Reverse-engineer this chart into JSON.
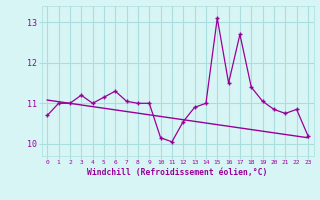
{
  "x": [
    0,
    1,
    2,
    3,
    4,
    5,
    6,
    7,
    8,
    9,
    10,
    11,
    12,
    13,
    14,
    15,
    16,
    17,
    18,
    19,
    20,
    21,
    22,
    23
  ],
  "y": [
    10.7,
    11.0,
    11.0,
    11.2,
    11.0,
    11.15,
    11.3,
    11.05,
    11.0,
    11.0,
    10.15,
    10.05,
    10.55,
    10.9,
    11.0,
    13.1,
    11.5,
    12.7,
    11.4,
    11.05,
    10.85,
    10.75,
    10.85,
    10.2
  ],
  "trend_x": [
    0,
    23
  ],
  "trend_y": [
    11.08,
    10.15
  ],
  "line_color": "#990099",
  "trend_color": "#990099",
  "bg_color": "#d8f5f5",
  "grid_color": "#aadddd",
  "tick_label_color": "#990099",
  "xlabel": "Windchill (Refroidissement éolien,°C)",
  "yticks": [
    10,
    11,
    12,
    13
  ],
  "xticks": [
    0,
    1,
    2,
    3,
    4,
    5,
    6,
    7,
    8,
    9,
    10,
    11,
    12,
    13,
    14,
    15,
    16,
    17,
    18,
    19,
    20,
    21,
    22,
    23
  ],
  "ylim": [
    9.7,
    13.4
  ],
  "xlim": [
    -0.5,
    23.5
  ]
}
